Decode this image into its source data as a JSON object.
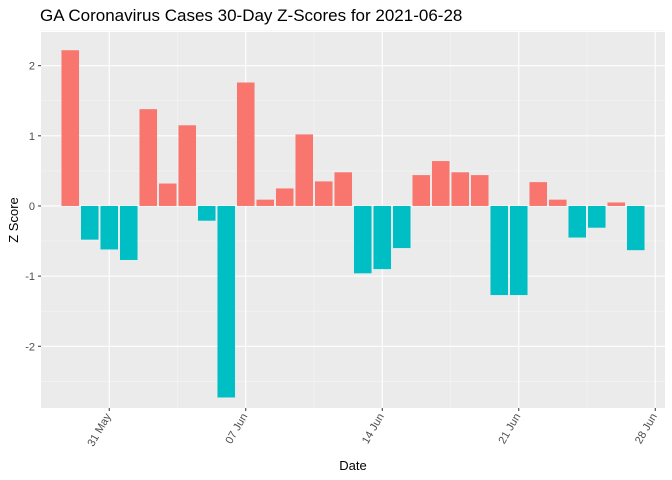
{
  "chart_data": {
    "type": "bar",
    "title": "GA Coronavirus Cases 30-Day Z-Scores for 2021-06-28",
    "xlabel": "Date",
    "ylabel": "Z Score",
    "dates": [
      "2021-05-29",
      "2021-05-30",
      "2021-05-31",
      "2021-06-01",
      "2021-06-02",
      "2021-06-03",
      "2021-06-04",
      "2021-06-05",
      "2021-06-06",
      "2021-06-07",
      "2021-06-08",
      "2021-06-09",
      "2021-06-10",
      "2021-06-11",
      "2021-06-12",
      "2021-06-13",
      "2021-06-14",
      "2021-06-15",
      "2021-06-16",
      "2021-06-17",
      "2021-06-18",
      "2021-06-19",
      "2021-06-20",
      "2021-06-21",
      "2021-06-22",
      "2021-06-23",
      "2021-06-24",
      "2021-06-25",
      "2021-06-26",
      "2021-06-27"
    ],
    "values": [
      2.22,
      -0.48,
      -0.62,
      -0.77,
      1.38,
      0.32,
      1.15,
      -0.21,
      -2.73,
      1.76,
      0.09,
      0.25,
      1.02,
      0.35,
      0.48,
      -0.96,
      -0.9,
      -0.6,
      0.44,
      0.64,
      0.48,
      0.44,
      -1.27,
      -1.27,
      0.34,
      0.09,
      -0.45,
      -0.31,
      0.05,
      -0.63
    ],
    "colors": {
      "positive": "#F8766D",
      "negative": "#00BFC4",
      "panel": "#EBEBEB",
      "grid_major": "#FFFFFF",
      "grid_minor": "#F5F5F5"
    },
    "x_ticks": [
      {
        "date": "2021-05-31",
        "label": "31 May"
      },
      {
        "date": "2021-06-07",
        "label": "07 Jun"
      },
      {
        "date": "2021-06-14",
        "label": "14 Jun"
      },
      {
        "date": "2021-06-21",
        "label": "21 Jun"
      },
      {
        "date": "2021-06-28",
        "label": "28 Jun"
      }
    ],
    "y_ticks": [
      2,
      1,
      0,
      -1,
      -2
    ],
    "ylim": [
      -2.88,
      2.48
    ],
    "xlim": [
      "2021-05-27T12:00",
      "2021-06-28T12:00"
    ],
    "legend": "none"
  }
}
